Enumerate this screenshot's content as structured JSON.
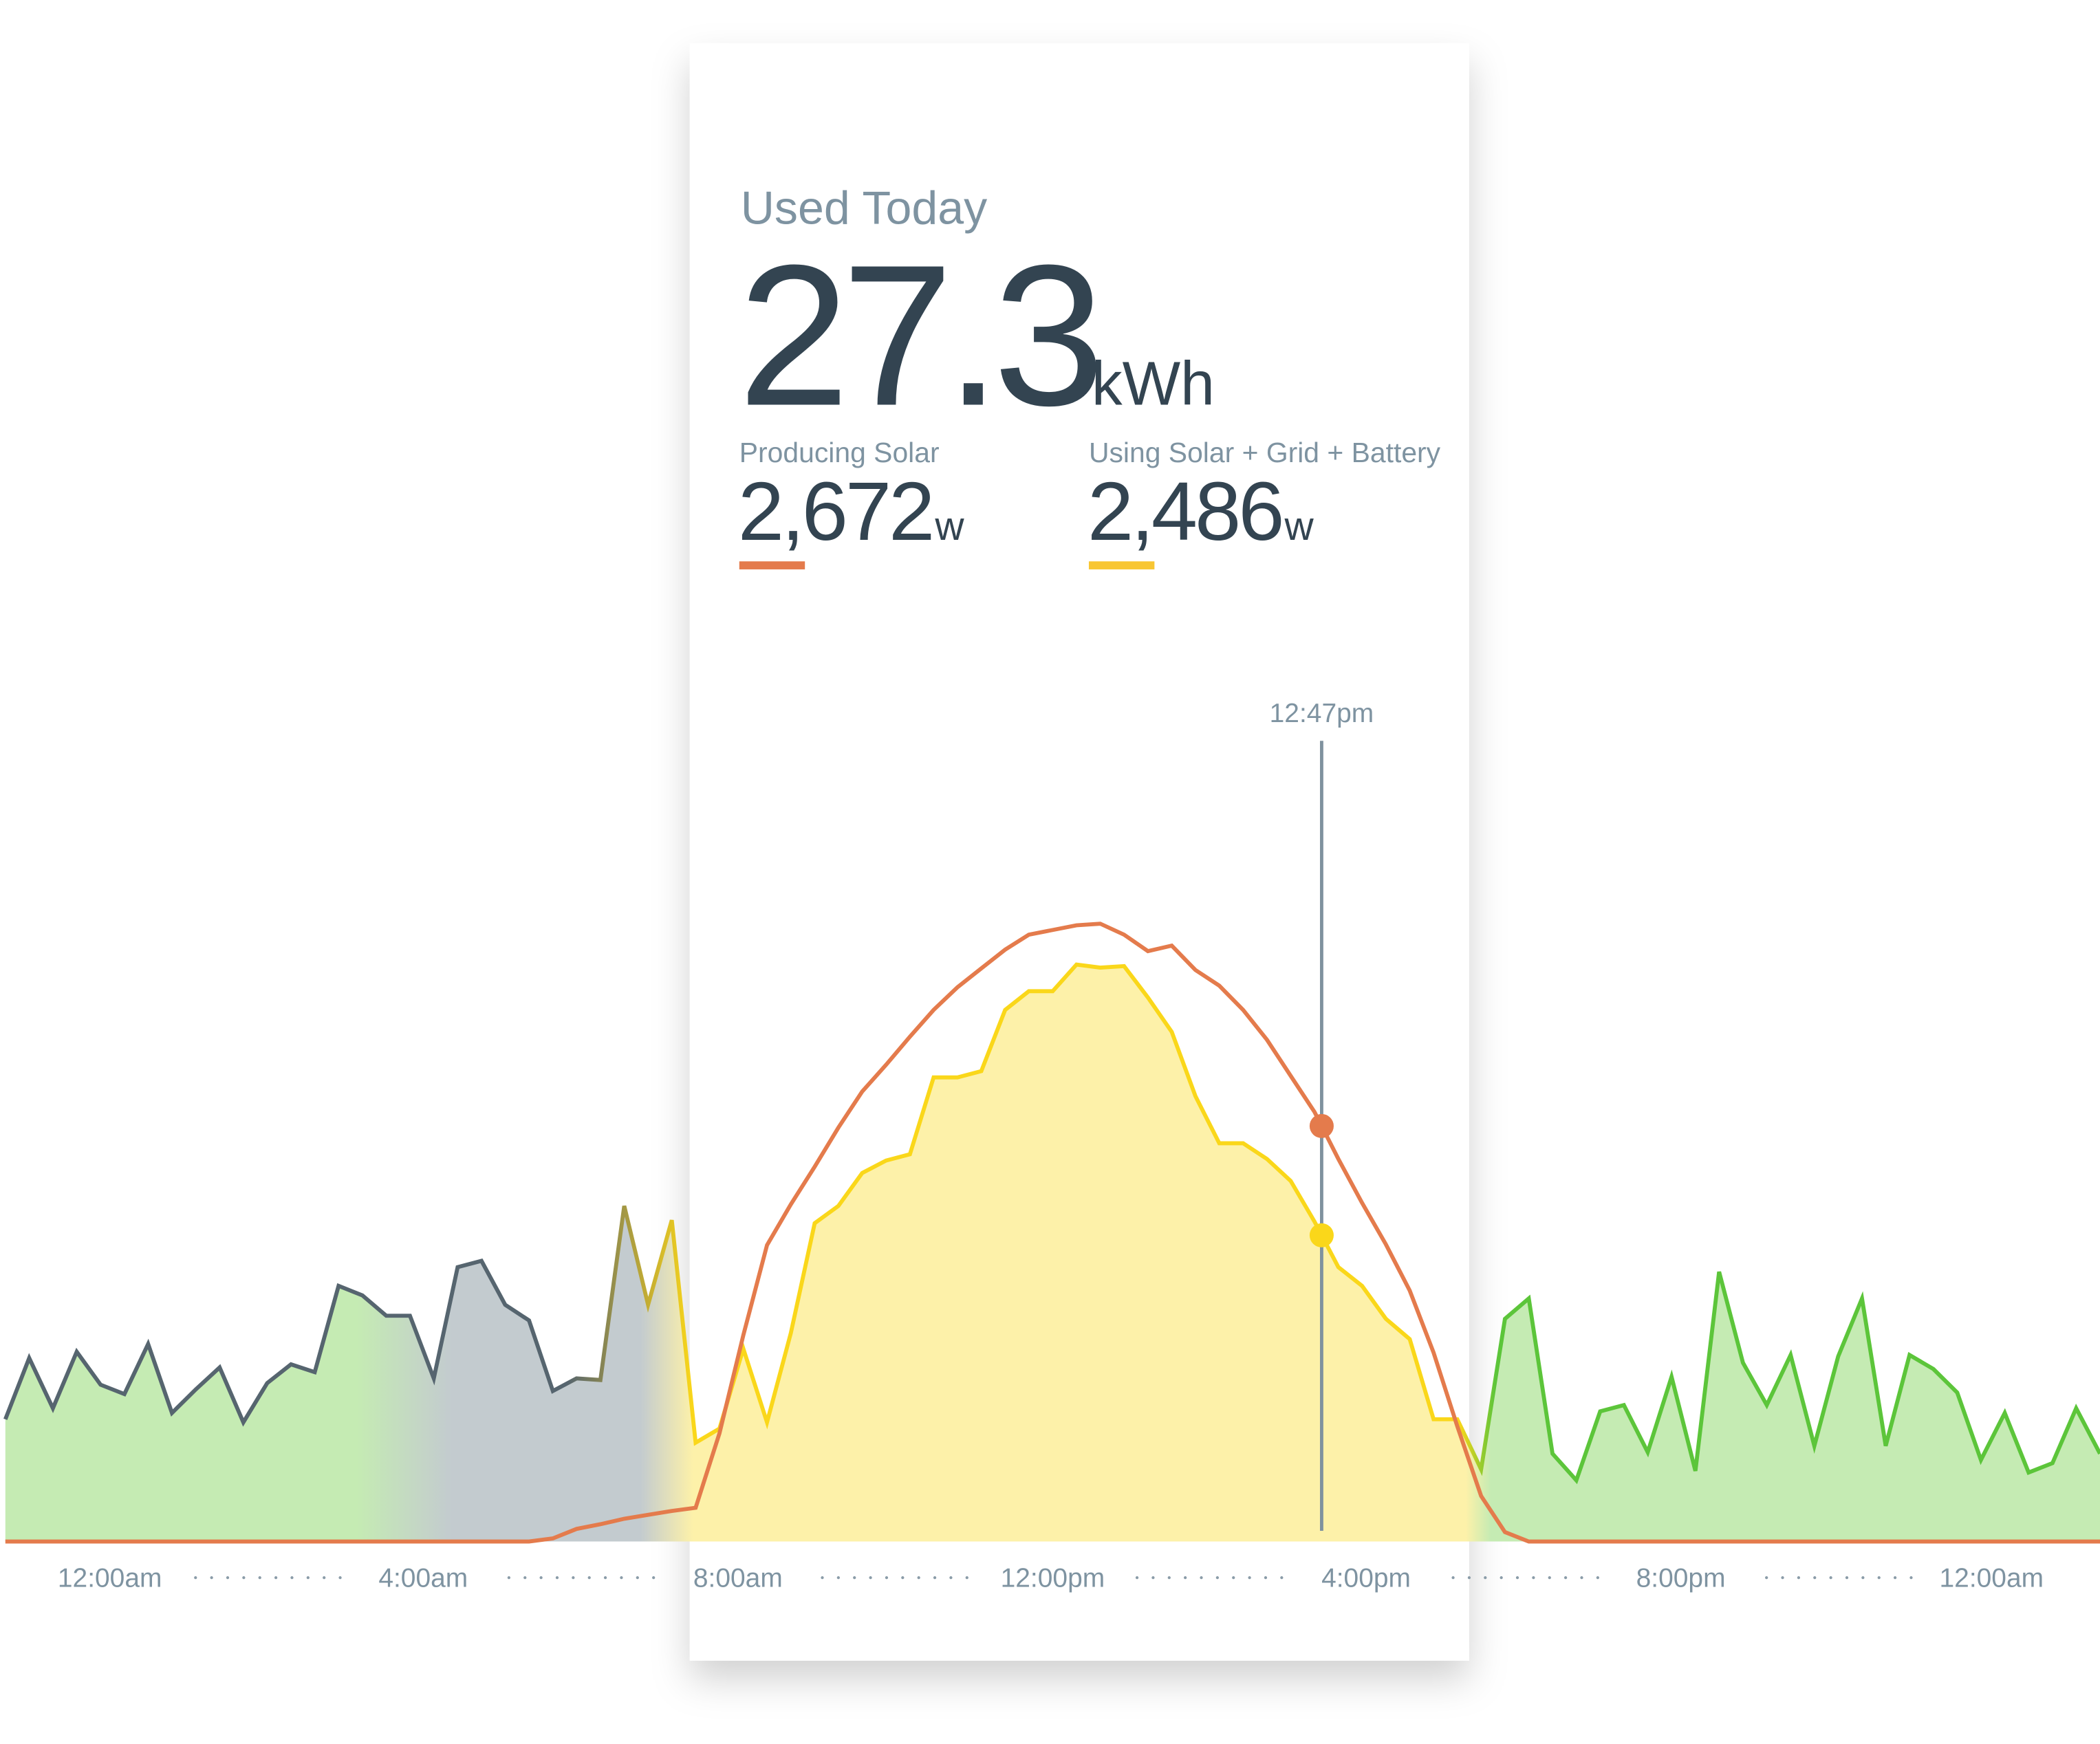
{
  "card": {
    "title": "Used Today",
    "total_value": "27.3",
    "total_unit": "kWh",
    "metrics": [
      {
        "label": "Producing Solar",
        "value": "2,672",
        "unit": "w",
        "color": "#e47b4c"
      },
      {
        "label": "Using Solar + Grid + Battery",
        "value": "2,486",
        "unit": "w",
        "color": "#f8c633"
      }
    ]
  },
  "chart_data": {
    "type": "area",
    "start_time": "10:40pm",
    "interval_minutes": 18,
    "x_tick_labels": [
      "12:00am",
      "4:00am",
      "8:00am",
      "12:00pm",
      "4:00pm",
      "8:00pm",
      "12:00am"
    ],
    "y_unit": "W",
    "solar_w": [
      0,
      0,
      0,
      0,
      0,
      0,
      0,
      0,
      0,
      0,
      0,
      0,
      0,
      0,
      0,
      0,
      0,
      0,
      0,
      0,
      0,
      0,
      0,
      20,
      80,
      110,
      145,
      170,
      195,
      215,
      690,
      1315,
      1890,
      2150,
      2390,
      2640,
      2870,
      3040,
      3220,
      3390,
      3535,
      3655,
      3775,
      3870,
      3900,
      3930,
      3940,
      3870,
      3765,
      3800,
      3645,
      3545,
      3390,
      3200,
      2970,
      2740,
      2440,
      2160,
      1895,
      1600,
      1205,
      735,
      290,
      60,
      0,
      0,
      0,
      0,
      0,
      0,
      0,
      0,
      0,
      0,
      0,
      0,
      0,
      0,
      0,
      0,
      0,
      0,
      0,
      0,
      0,
      0,
      0,
      0,
      0
    ],
    "usage_w": [
      780,
      1170,
      850,
      1210,
      1000,
      940,
      1260,
      820,
      970,
      1110,
      760,
      1010,
      1130,
      1080,
      1630,
      1570,
      1440,
      1440,
      1040,
      1750,
      1790,
      1510,
      1410,
      960,
      1040,
      1030,
      2140,
      1510,
      2050,
      630,
      720,
      1230,
      760,
      1330,
      2030,
      2140,
      2350,
      2430,
      2470,
      2960,
      2960,
      3000,
      3390,
      3510,
      3510,
      3680,
      3660,
      3670,
      3470,
      3250,
      2840,
      2540,
      2540,
      2440,
      2300,
      2040,
      1750,
      1630,
      1420,
      1290,
      780,
      780,
      460,
      1420,
      1550,
      560,
      390,
      830,
      870,
      570,
      1050,
      450,
      1720,
      1140,
      870,
      1190,
      610,
      1180,
      1550,
      610,
      1190,
      1100,
      950,
      520,
      820,
      440,
      500,
      850,
      560
    ],
    "marker": {
      "label": "12:47pm",
      "solar_w": 2672,
      "usage_w": 2486
    },
    "colors": {
      "solar_line": "#e47b4c",
      "usage_grid_line": "#56656f",
      "usage_grid_fill": "#c3cbcf",
      "usage_solar_line": "#fad71a",
      "usage_solar_fill": "#fdf1a9",
      "usage_battery_line": "#5cc53a",
      "usage_battery_fill": "#c5ebb3",
      "marker_line": "#7f929e"
    }
  }
}
